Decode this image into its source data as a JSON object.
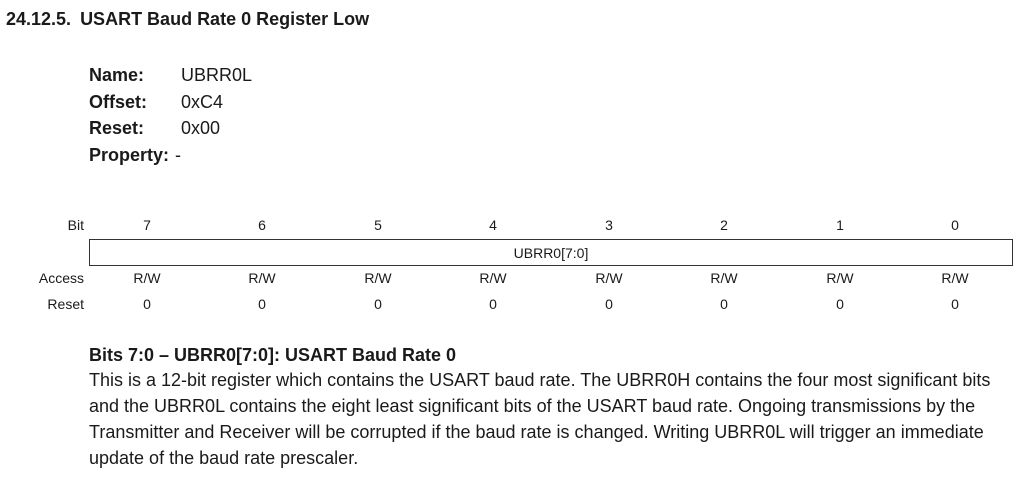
{
  "section": {
    "number": "24.12.5.",
    "title": "USART Baud Rate 0 Register Low"
  },
  "register": {
    "rows": [
      {
        "key": "Name:",
        "value": "UBRR0L"
      },
      {
        "key": "Offset:",
        "value": "0xC4"
      },
      {
        "key": "Reset:",
        "value": "0x00"
      },
      {
        "key": "Property:",
        "value": "-"
      }
    ]
  },
  "bit_table": {
    "labels": {
      "bit": "Bit",
      "access": "Access",
      "reset": "Reset"
    },
    "bits": [
      "7",
      "6",
      "5",
      "4",
      "3",
      "2",
      "1",
      "0"
    ],
    "field": "UBRR0[7:0]",
    "access": [
      "R/W",
      "R/W",
      "R/W",
      "R/W",
      "R/W",
      "R/W",
      "R/W",
      "R/W"
    ],
    "reset": [
      "0",
      "0",
      "0",
      "0",
      "0",
      "0",
      "0",
      "0"
    ]
  },
  "description": {
    "heading": "Bits 7:0 – UBRR0[7:0]:  USART Baud Rate 0",
    "body": "This is a 12-bit register which contains the USART baud rate. The UBRR0H contains the four most significant bits and the UBRR0L contains the eight least significant bits of the USART baud rate. Ongoing transmissions by the Transmitter and Receiver will be corrupted if the baud rate is changed. Writing UBRR0L will trigger an immediate update of the baud rate prescaler."
  }
}
